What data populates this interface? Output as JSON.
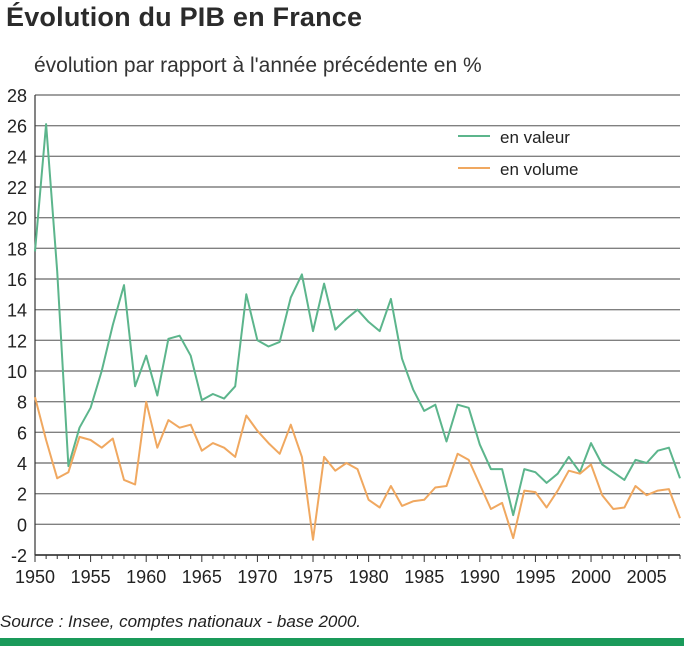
{
  "title": "Évolution du PIB en France",
  "subtitle": "évolution par rapport à l'année précédente en %",
  "source": "Source : Insee, comptes nationaux - base 2000.",
  "colors": {
    "valeur": "#5cb58c",
    "volume": "#f0a860",
    "grid": "#808080",
    "bar": "#1a9a5a"
  },
  "chart_data": {
    "type": "line",
    "title": "Évolution du PIB en France",
    "xlabel": "",
    "ylabel": "évolution par rapport à l'année précédente en %",
    "xlim": [
      1950,
      2008
    ],
    "ylim": [
      -2,
      28
    ],
    "x_ticks": [
      1950,
      1955,
      1960,
      1965,
      1970,
      1975,
      1980,
      1985,
      1990,
      1995,
      2000,
      2005
    ],
    "y_ticks": [
      -2,
      0,
      2,
      4,
      6,
      8,
      10,
      12,
      14,
      16,
      18,
      20,
      22,
      24,
      26,
      28
    ],
    "legend": "top-right",
    "grid": "horizontal",
    "x": [
      1950,
      1951,
      1952,
      1953,
      1954,
      1955,
      1956,
      1957,
      1958,
      1959,
      1960,
      1961,
      1962,
      1963,
      1964,
      1965,
      1966,
      1967,
      1968,
      1969,
      1970,
      1971,
      1972,
      1973,
      1974,
      1975,
      1976,
      1977,
      1978,
      1979,
      1980,
      1981,
      1982,
      1983,
      1984,
      1985,
      1986,
      1987,
      1988,
      1989,
      1990,
      1991,
      1992,
      1993,
      1994,
      1995,
      1996,
      1997,
      1998,
      1999,
      2000,
      2001,
      2002,
      2003,
      2004,
      2005,
      2006,
      2007,
      2008
    ],
    "series": [
      {
        "name": "en valeur",
        "values": [
          17.8,
          26.1,
          16.5,
          3.8,
          6.3,
          7.6,
          10.0,
          13.0,
          15.6,
          9.0,
          11.0,
          8.4,
          12.1,
          12.3,
          11.0,
          8.1,
          8.5,
          8.2,
          9.0,
          15.0,
          12.0,
          11.6,
          11.9,
          14.8,
          16.3,
          12.6,
          15.7,
          12.7,
          13.4,
          14.0,
          13.2,
          12.6,
          14.7,
          10.8,
          8.8,
          7.4,
          7.8,
          5.4,
          7.8,
          7.6,
          5.2,
          3.6,
          3.6,
          0.6,
          3.6,
          3.4,
          2.7,
          3.3,
          4.4,
          3.4,
          5.3,
          3.9,
          3.4,
          2.9,
          4.2,
          4.0,
          4.8,
          5.0,
          3.0
        ]
      },
      {
        "name": "en volume",
        "values": [
          8.3,
          5.5,
          3.0,
          3.4,
          5.7,
          5.5,
          5.0,
          5.6,
          2.9,
          2.6,
          8.0,
          5.0,
          6.8,
          6.3,
          6.5,
          4.8,
          5.3,
          5.0,
          4.4,
          7.1,
          6.1,
          5.3,
          4.6,
          6.5,
          4.4,
          -1.0,
          4.4,
          3.5,
          4.0,
          3.6,
          1.6,
          1.1,
          2.5,
          1.2,
          1.5,
          1.6,
          2.4,
          2.5,
          4.6,
          4.2,
          2.6,
          1.0,
          1.4,
          -0.9,
          2.2,
          2.1,
          1.1,
          2.2,
          3.5,
          3.3,
          3.9,
          1.9,
          1.0,
          1.1,
          2.5,
          1.9,
          2.2,
          2.3,
          0.4
        ]
      }
    ]
  }
}
